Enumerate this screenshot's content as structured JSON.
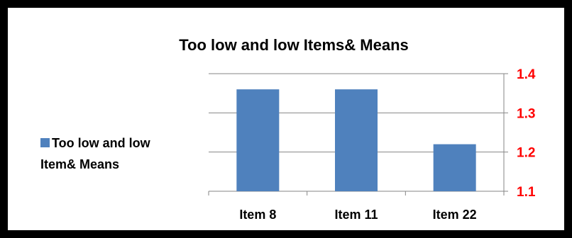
{
  "chart_data": {
    "type": "bar",
    "title": "Too low and low Items& Means",
    "categories": [
      "Item 8",
      "Item 11",
      "Item 22"
    ],
    "series": [
      {
        "name": "Too low and low Item& Means",
        "values": [
          1.36,
          1.36,
          1.22
        ]
      }
    ],
    "yaxis_side": "right",
    "ylim": [
      1.1,
      1.4
    ],
    "yticks": [
      "1.4",
      "1.3",
      "1.2",
      "1.1"
    ],
    "grid": true,
    "legend_position": "left",
    "bar_color": "#4f81bd",
    "tick_label_color": "#ff0000"
  },
  "legend": {
    "line1": "Too low and low",
    "line2": "Item& Means"
  }
}
